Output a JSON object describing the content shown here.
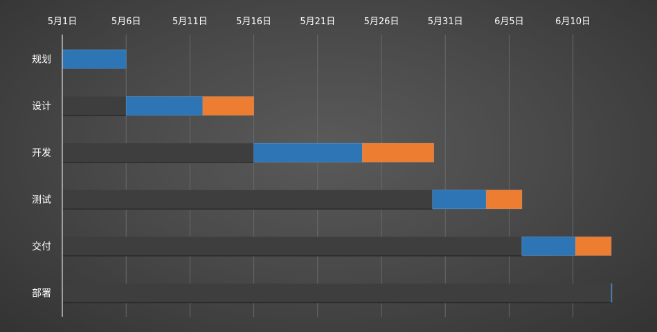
{
  "chart_data": {
    "type": "bar",
    "orientation": "horizontal-stacked-gantt",
    "title": "",
    "xlabel": "",
    "ylabel": "",
    "x_tick_labels": [
      "5月1日",
      "5月6日",
      "5月11日",
      "5月16日",
      "5月21日",
      "5月26日",
      "5月31日",
      "6月5日",
      "6月10日"
    ],
    "x_ticks": [
      "2024-05-01",
      "2024-05-06",
      "2024-05-11",
      "2024-05-16",
      "2024-05-21",
      "2024-05-26",
      "2024-05-31",
      "2024-06-05",
      "2024-06-10"
    ],
    "xlim": [
      "2024-05-01",
      "2024-06-13"
    ],
    "categories": [
      "规划",
      "设计",
      "开发",
      "测试",
      "交付",
      "部署"
    ],
    "series": [
      {
        "values": [
          "2024-05-01",
          "2024-05-06",
          "2024-05-16",
          "2024-05-30",
          "2024-06-06",
          "2024-06-13"
        ]
      },
      {
        "values": [
          5,
          6,
          8.5,
          4.2,
          4.2,
          0.05
        ]
      },
      {
        "values": [
          0,
          4,
          5.6,
          2.8,
          2.8,
          0
        ]
      }
    ],
    "colors": {
      "start_track": "#3e3e3e",
      "first_segment": "#2e75b6",
      "second_segment": "#ed7d31",
      "gridline": "#6a6a6a",
      "axis": "#bfbfbf"
    },
    "grid": true,
    "legend": "none"
  }
}
